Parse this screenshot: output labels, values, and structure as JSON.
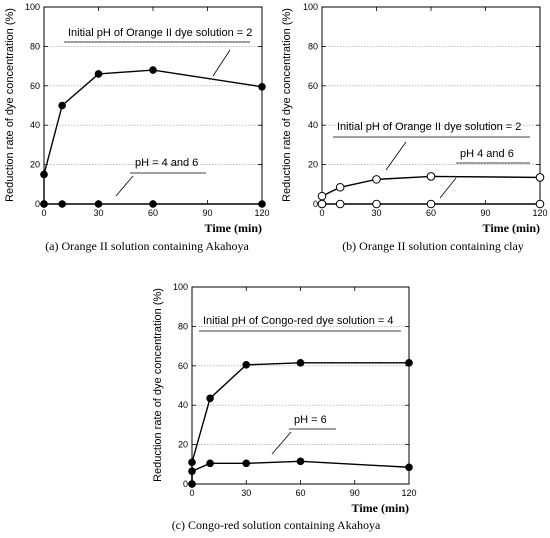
{
  "chart_data": [
    {
      "type": "line",
      "caption": "(a) Orange II solution containing Akahoya",
      "xlabel": "Time (min)",
      "ylabel": "Reduction rate of dye concentration (%)",
      "xlim": [
        0,
        120
      ],
      "ylim": [
        0,
        100
      ],
      "xticks": [
        0,
        30,
        60,
        90,
        120
      ],
      "yticks": [
        0,
        20,
        40,
        60,
        80,
        100
      ],
      "grid": true,
      "series": [
        {
          "marker": "filled",
          "x": [
            0,
            0,
            10,
            30,
            60,
            120
          ],
          "y": [
            0,
            15,
            50,
            66,
            68,
            59.5
          ]
        },
        {
          "marker": "filled",
          "x": [
            0,
            10,
            30,
            60,
            120
          ],
          "y": [
            0,
            0,
            0,
            0,
            0
          ]
        }
      ],
      "annotations": [
        "Initial pH of Orange II dye solution = 2",
        "pH = 4 and 6"
      ]
    },
    {
      "type": "line",
      "caption": "(b) Orange II solution containing clay",
      "xlabel": "Time (min)",
      "ylabel": "Reduction rate of dye concentration (%)",
      "xlim": [
        0,
        120
      ],
      "ylim": [
        0,
        100
      ],
      "xticks": [
        0,
        30,
        60,
        90,
        120
      ],
      "yticks": [
        0,
        20,
        40,
        60,
        80,
        100
      ],
      "grid": true,
      "series": [
        {
          "marker": "open",
          "x": [
            0,
            0,
            10,
            30,
            60,
            120
          ],
          "y": [
            0,
            4,
            8.5,
            12.5,
            14,
            13.5
          ]
        },
        {
          "marker": "open",
          "x": [
            0,
            10,
            30,
            60,
            120
          ],
          "y": [
            0,
            0,
            0,
            0,
            0
          ]
        }
      ],
      "annotations": [
        "Initial pH of Orange II dye solution = 2",
        "pH 4 and 6"
      ]
    },
    {
      "type": "line",
      "caption": "(c) Congo-red solution containing Akahoya",
      "xlabel": "Time (min)",
      "ylabel": "Reduction rate of dye concentration (%)",
      "xlim": [
        0,
        120
      ],
      "ylim": [
        0,
        100
      ],
      "xticks": [
        0,
        30,
        60,
        90,
        120
      ],
      "yticks": [
        0,
        20,
        40,
        60,
        80,
        100
      ],
      "grid": true,
      "series": [
        {
          "marker": "filled",
          "x": [
            0,
            0,
            10,
            30,
            60,
            120
          ],
          "y": [
            0,
            11,
            43.5,
            60.5,
            61.5,
            61.5
          ]
        },
        {
          "marker": "filled",
          "x": [
            0,
            0,
            10,
            30,
            60,
            120
          ],
          "y": [
            0,
            6.5,
            10.5,
            10.5,
            11.5,
            8.5
          ]
        }
      ],
      "annotations": [
        "Initial pH of Congo-red dye solution = 4",
        "pH = 6"
      ]
    }
  ]
}
